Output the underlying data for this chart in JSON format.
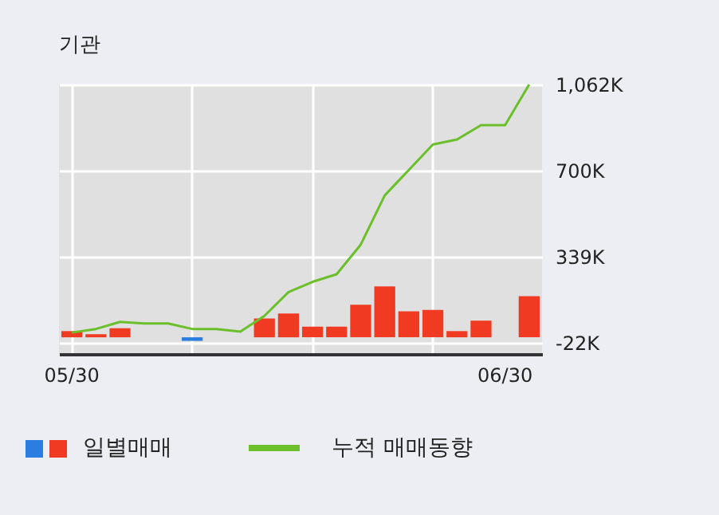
{
  "chart_data": {
    "type": "bar",
    "title": "기관",
    "categories": [
      "05/30",
      null,
      null,
      null,
      null,
      null,
      null,
      null,
      null,
      null,
      null,
      null,
      null,
      null,
      null,
      null,
      null,
      null,
      "06/30",
      null
    ],
    "series": [
      {
        "name": "일별매매",
        "color": "#f03a22",
        "colors": [
          "#f03a22",
          "#f03a22",
          "#f03a22",
          null,
          null,
          "#2a7de1",
          null,
          null,
          "#f03a22",
          "#f03a22",
          "#f03a22",
          "#f03a22",
          "#f03a22",
          "#f03a22",
          "#f03a22",
          "#f03a22",
          "#f03a22",
          "#f03a22",
          null,
          "#f03a22"
        ],
        "values": [
          26,
          13,
          38,
          null,
          null,
          -15,
          null,
          null,
          79,
          100,
          45,
          45,
          137,
          214,
          109,
          115,
          26,
          70,
          null,
          173
        ]
      },
      {
        "name": "누적 매매동향",
        "type": "line",
        "color": "#6abf2a",
        "values": [
          20,
          35,
          65,
          58,
          58,
          35,
          35,
          24,
          90,
          190,
          233,
          265,
          389,
          596,
          703,
          810,
          831,
          891,
          891,
          1062
        ]
      }
    ],
    "ylim": [
      -70,
      1062
    ],
    "yticks": [
      {
        "value": -22,
        "label": "-22K"
      },
      {
        "value": 339,
        "label": "339K"
      },
      {
        "value": 700,
        "label": "700K"
      },
      {
        "value": 1062,
        "label": "1,062K"
      }
    ],
    "grid": true,
    "legend": "bottom"
  }
}
